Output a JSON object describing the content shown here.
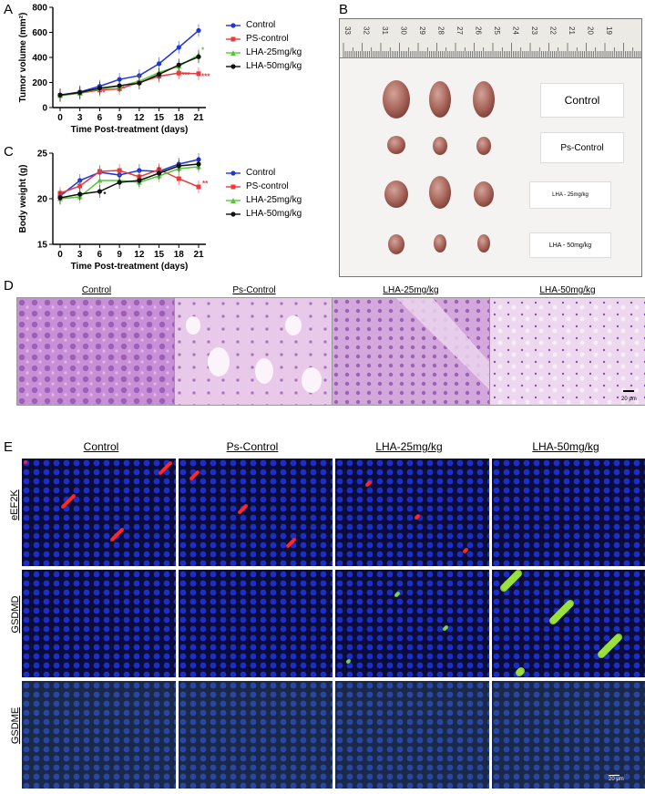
{
  "panels": {
    "A": "A",
    "B": "B",
    "C": "C",
    "D": "D",
    "E": "E"
  },
  "legend_labels": [
    "Control",
    "PS-control",
    "LHA-25mg/kg",
    "LHA-50mg/kg"
  ],
  "colors": {
    "control": "#1f35d6",
    "ps": "#e8393b",
    "lha25": "#57c63c",
    "lha50": "#111111"
  },
  "chart_data": [
    {
      "type": "line",
      "ylabel": "Tumor volume (mm²)",
      "xlabel": "Time Post-treatment (days)",
      "x": [
        0,
        3,
        6,
        9,
        12,
        15,
        18,
        21
      ],
      "ylim": [
        0,
        800
      ],
      "yticks": [
        0,
        200,
        400,
        600,
        800
      ],
      "series": [
        {
          "name": "Control",
          "values": [
            100,
            125,
            170,
            225,
            255,
            350,
            480,
            615
          ]
        },
        {
          "name": "PS-control",
          "values": [
            95,
            115,
            140,
            150,
            200,
            250,
            275,
            270
          ]
        },
        {
          "name": "LHA-25mg/kg",
          "values": [
            95,
            115,
            150,
            170,
            210,
            280,
            330,
            420
          ]
        },
        {
          "name": "LHA-50mg/kg",
          "values": [
            100,
            120,
            155,
            175,
            195,
            265,
            340,
            405
          ]
        }
      ],
      "annotations": [
        "*",
        "*",
        "***",
        "***",
        "*"
      ]
    },
    {
      "type": "line",
      "ylabel": "Body weight (g)",
      "xlabel": "Time Post-treatment (days)",
      "x": [
        0,
        3,
        6,
        9,
        12,
        15,
        18,
        21
      ],
      "ylim": [
        15,
        25
      ],
      "yticks": [
        15,
        20,
        25
      ],
      "series": [
        {
          "name": "Control",
          "values": [
            20.3,
            22.0,
            22.9,
            22.6,
            23.1,
            23.0,
            23.8,
            24.3
          ]
        },
        {
          "name": "PS-control",
          "values": [
            20.6,
            21.4,
            23.0,
            23.1,
            22.4,
            23.2,
            22.2,
            21.3
          ]
        },
        {
          "name": "LHA-25mg/kg",
          "values": [
            20.0,
            20.2,
            22.0,
            22.0,
            21.8,
            22.5,
            23.3,
            23.5
          ]
        },
        {
          "name": "LHA-50mg/kg",
          "values": [
            20.1,
            20.5,
            20.8,
            21.8,
            22.0,
            22.8,
            23.6,
            23.8
          ]
        }
      ],
      "annotations": [
        "*",
        "**"
      ]
    }
  ],
  "photo": {
    "ruler_numbers": [
      "33",
      "32",
      "31",
      "30",
      "29",
      "28",
      "27",
      "26",
      "25",
      "24",
      "23",
      "22",
      "21",
      "20",
      "19"
    ],
    "groups": [
      "Control",
      "Ps-Control",
      "LHA - 25mg/kg",
      "LHA - 50mg/kg"
    ]
  },
  "histology": {
    "titles": [
      "Control",
      "Ps-Control",
      "LHA-25mg/kg",
      "LHA-50mg/kg"
    ],
    "scale": "20 μm"
  },
  "fluorescence": {
    "titles": [
      "Control",
      "Ps-Control",
      "LHA-25mg/kg",
      "LHA-50mg/kg"
    ],
    "rows": [
      "eEF2K",
      "GSDMD",
      "GSDME"
    ],
    "scale": "20 μm"
  }
}
